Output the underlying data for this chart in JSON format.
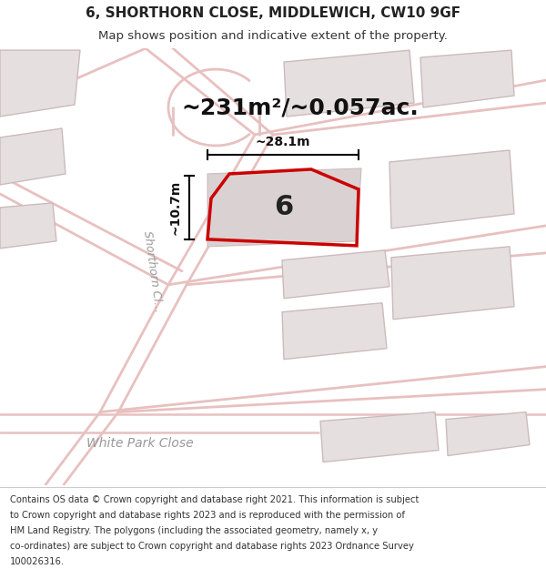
{
  "title": "6, SHORTHORN CLOSE, MIDDLEWICH, CW10 9GF",
  "subtitle": "Map shows position and indicative extent of the property.",
  "area_text": "~231m²/~0.057ac.",
  "property_number": "6",
  "dim_height": "~10.7m",
  "dim_width": "~28.1m",
  "street_label_shorthorn": "Shorthorn Cl...",
  "street_label_white": "White Park Close",
  "footer_lines": [
    "Contains OS data © Crown copyright and database right 2021. This information is subject",
    "to Crown copyright and database rights 2023 and is reproduced with the permission of",
    "HM Land Registry. The polygons (including the associated geometry, namely x, y",
    "co-ordinates) are subject to Crown copyright and database rights 2023 Ordnance Survey",
    "100026316."
  ],
  "bg_color": "#f2eded",
  "road_color": "#e8c0c0",
  "building_color": "#e0d8d8",
  "building_edge": "#ccbbbb",
  "highlight_color": "#cc0000",
  "dim_color": "#111111",
  "text_color": "#333333",
  "label_color": "#999999",
  "title_fontsize": 11,
  "subtitle_fontsize": 9.5,
  "area_fontsize": 18,
  "prop_num_fontsize": 22,
  "dim_fontsize": 10,
  "street_fontsize": 9,
  "footer_fontsize": 7.2,
  "road_lw": 2,
  "prop_lw": 2.5
}
